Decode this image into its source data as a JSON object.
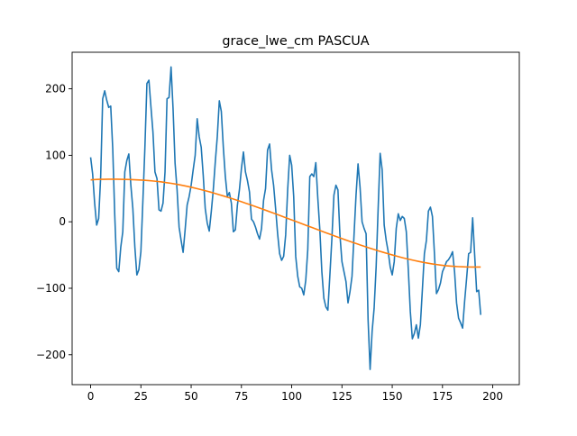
{
  "chart_data": {
    "type": "line",
    "title": "grace_lwe_cm PASCUA",
    "xlabel": "",
    "ylabel": "",
    "xlim": [
      -9.2,
      213.2
    ],
    "ylim": [
      -245,
      255
    ],
    "xticks": [
      0,
      25,
      50,
      75,
      100,
      125,
      150,
      175,
      200
    ],
    "yticks": [
      -200,
      -100,
      0,
      100,
      200
    ],
    "grid": false,
    "colors": {
      "series_1": "#1f77b4",
      "series_2": "#ff7f0e"
    },
    "series": [
      {
        "values": [
          97,
          72,
          28,
          -5,
          5,
          68,
          185,
          197,
          183,
          172,
          174,
          110,
          10,
          -70,
          -75,
          -38,
          -15,
          75,
          92,
          102,
          55,
          20,
          -38,
          -80,
          -72,
          -45,
          32,
          112,
          208,
          213,
          173,
          135,
          75,
          65,
          18,
          16,
          28,
          75,
          185,
          187,
          233,
          170,
          88,
          48,
          -8,
          -28,
          -46,
          -12,
          25,
          38,
          55,
          78,
          100,
          155,
          128,
          112,
          70,
          20,
          -2,
          -14,
          15,
          48,
          90,
          128,
          182,
          166,
          112,
          68,
          38,
          44,
          28,
          -15,
          -12,
          25,
          48,
          80,
          105,
          75,
          62,
          45,
          4,
          0,
          -8,
          -18,
          -26,
          -10,
          32,
          50,
          108,
          117,
          78,
          55,
          20,
          -18,
          -48,
          -58,
          -52,
          -20,
          48,
          100,
          85,
          38,
          -52,
          -82,
          -98,
          -100,
          -110,
          -88,
          -42,
          68,
          72,
          68,
          89,
          35,
          -12,
          -75,
          -115,
          -128,
          -133,
          -80,
          -25,
          40,
          55,
          48,
          -20,
          -60,
          -75,
          -90,
          -122,
          -105,
          -82,
          -20,
          40,
          87,
          52,
          0,
          -10,
          -18,
          -148,
          -222,
          -165,
          -130,
          -68,
          20,
          103,
          78,
          -5,
          -28,
          -45,
          -68,
          -80,
          -60,
          -10,
          12,
          2,
          8,
          5,
          -15,
          -72,
          -135,
          -176,
          -168,
          -155,
          -175,
          -155,
          -102,
          -48,
          -28,
          16,
          22,
          8,
          -48,
          -108,
          -102,
          -92,
          -75,
          -68,
          -60,
          -57,
          -52,
          -45,
          -75,
          -122,
          -145,
          -152,
          -160,
          -120,
          -85,
          -48,
          -46,
          6,
          -50,
          -105,
          -103,
          -140
        ]
      },
      {
        "values": [
          63,
          63.5,
          63.8,
          63.9,
          64,
          64,
          64,
          63.9,
          63.7,
          63.5,
          63.2,
          62.9,
          62.5,
          62,
          61.4,
          60.7,
          59.9,
          59,
          58,
          56.9,
          55.7,
          54.4,
          53,
          51.5,
          49.9,
          48.2,
          46.5,
          44.7,
          42.8,
          40.8,
          38.8,
          36.7,
          34.6,
          32.4,
          30.2,
          27.9,
          25.6,
          23.3,
          20.9,
          18.5,
          16.1,
          13.7,
          11.2,
          8.7,
          6.2,
          3.7,
          1.2,
          -1.3,
          -3.8,
          -6.3,
          -8.8,
          -11.3,
          -13.8,
          -16.3,
          -18.8,
          -21.2,
          -23.6,
          -26,
          -28.4,
          -30.7,
          -33,
          -35.3,
          -37.5,
          -39.7,
          -41.8,
          -43.9,
          -45.9,
          -47.9,
          -49.8,
          -51.6,
          -53.4,
          -55.1,
          -56.7,
          -58.2,
          -59.6,
          -61,
          -62.2,
          -63.3,
          -64.3,
          -65.2,
          -66,
          -66.6,
          -67.1,
          -67.5,
          -67.8,
          -68,
          -68.1,
          -68.1,
          -68.1
        ]
      }
    ]
  }
}
